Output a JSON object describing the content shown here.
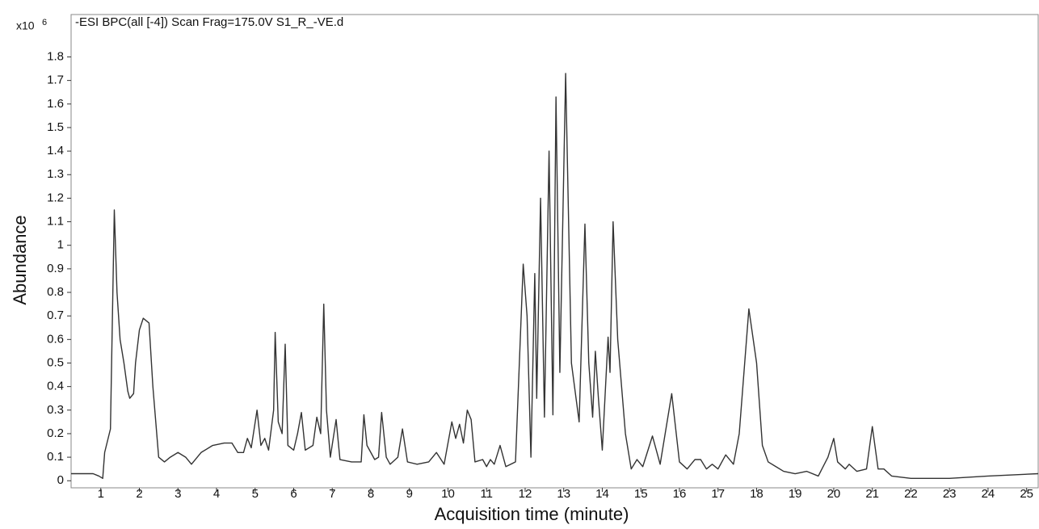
{
  "chart_data": {
    "type": "line",
    "title": "-ESI BPC(all [-4]) Scan Frag=175.0V S1_R_-VE.d",
    "y_multiplier": "x10",
    "y_multiplier_exponent": "6",
    "xlabel": "Acquisition time (minute)",
    "ylabel": "Abundance",
    "xlim": [
      0.23,
      25.3
    ],
    "ylim": [
      -0.03,
      1.98
    ],
    "xticks": [
      1,
      2,
      3,
      4,
      5,
      6,
      7,
      8,
      9,
      10,
      11,
      12,
      13,
      14,
      15,
      16,
      17,
      18,
      19,
      20,
      21,
      22,
      23,
      24,
      25
    ],
    "yticks": [
      0,
      0.1,
      0.2,
      0.3,
      0.4,
      0.5,
      0.6,
      0.7,
      0.8,
      0.9,
      1,
      1.1,
      1.2,
      1.3,
      1.4,
      1.5,
      1.6,
      1.7,
      1.8
    ],
    "series": [
      {
        "color": "#333333",
        "x": [
          0.23,
          0.5,
          0.8,
          0.95,
          1.05,
          1.1,
          1.25,
          1.35,
          1.42,
          1.5,
          1.6,
          1.7,
          1.75,
          1.85,
          1.9,
          2.0,
          2.1,
          2.25,
          2.35,
          2.5,
          2.65,
          2.8,
          3.0,
          3.2,
          3.35,
          3.6,
          3.9,
          4.2,
          4.4,
          4.55,
          4.7,
          4.8,
          4.9,
          5.05,
          5.15,
          5.25,
          5.35,
          5.48,
          5.52,
          5.6,
          5.7,
          5.78,
          5.85,
          6.0,
          6.1,
          6.2,
          6.3,
          6.5,
          6.6,
          6.7,
          6.78,
          6.85,
          6.95,
          7.1,
          7.2,
          7.5,
          7.75,
          7.82,
          7.9,
          8.1,
          8.2,
          8.28,
          8.4,
          8.5,
          8.7,
          8.82,
          8.95,
          9.2,
          9.5,
          9.7,
          9.9,
          10.1,
          10.2,
          10.3,
          10.4,
          10.5,
          10.6,
          10.7,
          10.9,
          11.0,
          11.1,
          11.2,
          11.35,
          11.5,
          11.75,
          11.95,
          12.05,
          12.15,
          12.25,
          12.3,
          12.4,
          12.5,
          12.62,
          12.72,
          12.8,
          12.9,
          13.05,
          13.2,
          13.4,
          13.55,
          13.65,
          13.75,
          13.82,
          13.9,
          14.0,
          14.15,
          14.2,
          14.28,
          14.4,
          14.6,
          14.75,
          14.9,
          15.05,
          15.3,
          15.5,
          15.8,
          16.0,
          16.2,
          16.4,
          16.55,
          16.7,
          16.85,
          17.0,
          17.2,
          17.4,
          17.55,
          17.8,
          18.0,
          18.15,
          18.3,
          18.5,
          18.7,
          19.0,
          19.3,
          19.6,
          19.85,
          20.0,
          20.1,
          20.3,
          20.4,
          20.6,
          20.85,
          21.0,
          21.15,
          21.3,
          21.5,
          22.0,
          23.0,
          24.0,
          25.3
        ],
        "values": [
          0.03,
          0.03,
          0.03,
          0.02,
          0.01,
          0.12,
          0.22,
          1.15,
          0.8,
          0.6,
          0.5,
          0.38,
          0.35,
          0.37,
          0.5,
          0.64,
          0.69,
          0.67,
          0.4,
          0.1,
          0.08,
          0.1,
          0.12,
          0.1,
          0.07,
          0.12,
          0.15,
          0.16,
          0.16,
          0.12,
          0.12,
          0.18,
          0.14,
          0.3,
          0.15,
          0.18,
          0.13,
          0.3,
          0.63,
          0.25,
          0.2,
          0.58,
          0.15,
          0.13,
          0.2,
          0.29,
          0.13,
          0.15,
          0.27,
          0.2,
          0.75,
          0.3,
          0.1,
          0.26,
          0.09,
          0.08,
          0.08,
          0.28,
          0.15,
          0.09,
          0.1,
          0.29,
          0.1,
          0.07,
          0.1,
          0.22,
          0.08,
          0.07,
          0.08,
          0.12,
          0.07,
          0.25,
          0.18,
          0.24,
          0.16,
          0.3,
          0.26,
          0.08,
          0.09,
          0.06,
          0.09,
          0.07,
          0.15,
          0.06,
          0.08,
          0.92,
          0.7,
          0.1,
          0.88,
          0.35,
          1.2,
          0.27,
          1.4,
          0.28,
          1.63,
          0.46,
          1.73,
          0.5,
          0.25,
          1.09,
          0.5,
          0.27,
          0.55,
          0.35,
          0.13,
          0.61,
          0.46,
          1.1,
          0.6,
          0.2,
          0.05,
          0.09,
          0.06,
          0.19,
          0.07,
          0.37,
          0.08,
          0.05,
          0.09,
          0.09,
          0.05,
          0.07,
          0.05,
          0.11,
          0.07,
          0.2,
          0.73,
          0.5,
          0.15,
          0.08,
          0.06,
          0.04,
          0.03,
          0.04,
          0.02,
          0.1,
          0.18,
          0.08,
          0.05,
          0.07,
          0.04,
          0.05,
          0.23,
          0.05,
          0.05,
          0.02,
          0.01,
          0.01,
          0.02,
          0.03
        ]
      }
    ]
  }
}
